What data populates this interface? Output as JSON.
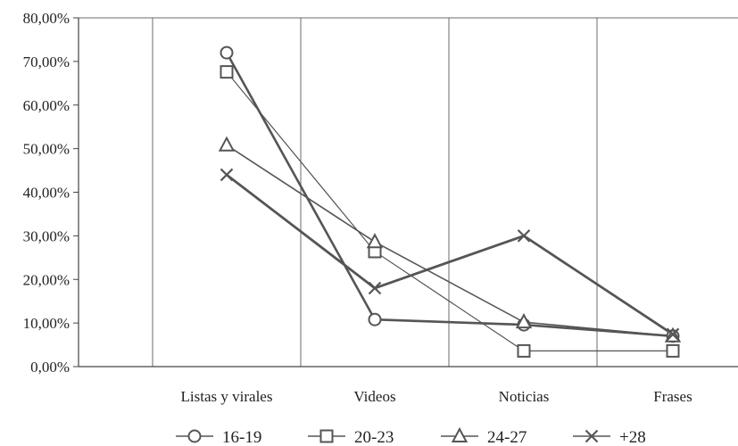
{
  "chart_data": {
    "type": "line",
    "categories": [
      "Listas y virales",
      "Videos",
      "Noticias",
      "Frases"
    ],
    "ylim": [
      0,
      80
    ],
    "yticks": [
      0,
      10,
      20,
      30,
      40,
      50,
      60,
      70,
      80
    ],
    "ytick_labels": [
      "0,00%",
      "10,00%",
      "20,00%",
      "30,00%",
      "40,00%",
      "50,00%",
      "60,00%",
      "70,00%",
      "80,00%"
    ],
    "grid": "vertical",
    "legend_position": "bottom",
    "series": [
      {
        "name": "16-19",
        "marker": "circle",
        "color": "#555555",
        "values": [
          72,
          10.8,
          9.6,
          7
        ]
      },
      {
        "name": "20-23",
        "marker": "square",
        "color": "#555555",
        "values": [
          67.6,
          26.4,
          3.6,
          3.6
        ]
      },
      {
        "name": "24-27",
        "marker": "triangle",
        "color": "#555555",
        "values": [
          50.8,
          28.6,
          10.2,
          7
        ]
      },
      {
        "name": "+28",
        "marker": "x",
        "color": "#555555",
        "values": [
          44,
          18,
          30,
          7.4
        ]
      }
    ]
  }
}
